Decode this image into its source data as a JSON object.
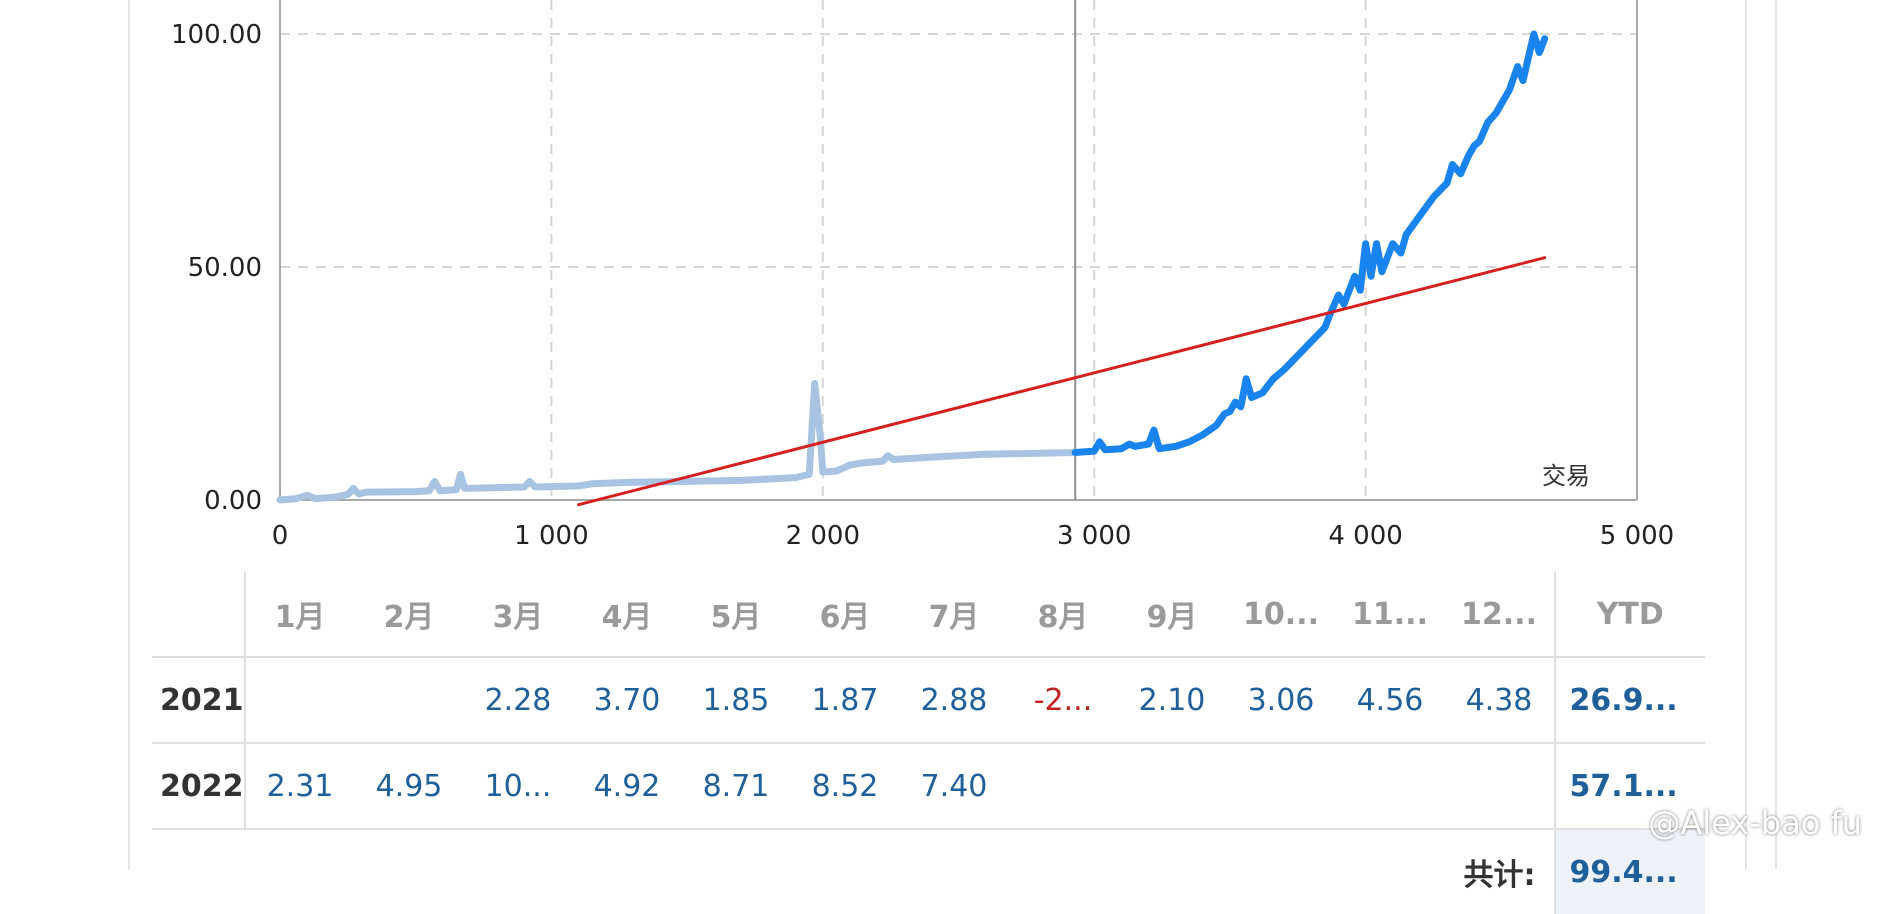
{
  "chart_data": {
    "type": "line",
    "xlim": [
      0,
      5000
    ],
    "ylim": [
      0,
      100
    ],
    "x_ticks": [
      "0",
      "1 000",
      "2 000",
      "3 000",
      "4 000",
      "5 000"
    ],
    "y_ticks": [
      "0.00",
      "50.00",
      "100.00"
    ],
    "grid": true,
    "series_label": "交易",
    "vertical_marker_x": 2930,
    "series": [
      {
        "style": "light-blue",
        "color": "#a9c3e3",
        "points": [
          [
            0,
            0
          ],
          [
            60,
            0.3
          ],
          [
            100,
            1
          ],
          [
            130,
            0.3
          ],
          [
            200,
            0.6
          ],
          [
            250,
            1.2
          ],
          [
            270,
            2.5
          ],
          [
            290,
            1.3
          ],
          [
            320,
            1.7
          ],
          [
            500,
            1.8
          ],
          [
            550,
            2
          ],
          [
            570,
            4
          ],
          [
            590,
            2
          ],
          [
            650,
            2.2
          ],
          [
            665,
            5.5
          ],
          [
            680,
            2.5
          ],
          [
            900,
            2.8
          ],
          [
            920,
            4
          ],
          [
            940,
            2.8
          ],
          [
            1100,
            3
          ],
          [
            1150,
            3.5
          ],
          [
            1300,
            3.8
          ],
          [
            1500,
            4
          ],
          [
            1700,
            4.2
          ],
          [
            1900,
            4.8
          ],
          [
            1950,
            5.5
          ],
          [
            1970,
            25
          ],
          [
            1990,
            14
          ],
          [
            2000,
            6
          ],
          [
            2050,
            6.2
          ],
          [
            2100,
            7.5
          ],
          [
            2150,
            8
          ],
          [
            2220,
            8.3
          ],
          [
            2240,
            9.5
          ],
          [
            2260,
            8.7
          ],
          [
            2400,
            9.2
          ],
          [
            2600,
            9.8
          ],
          [
            2930,
            10.2
          ]
        ]
      },
      {
        "style": "blue",
        "color": "#1a84ee",
        "points": [
          [
            2930,
            10.2
          ],
          [
            3000,
            10.5
          ],
          [
            3020,
            12.5
          ],
          [
            3040,
            10.8
          ],
          [
            3100,
            11
          ],
          [
            3130,
            12
          ],
          [
            3150,
            11.5
          ],
          [
            3200,
            12
          ],
          [
            3220,
            15
          ],
          [
            3240,
            11
          ],
          [
            3300,
            11.5
          ],
          [
            3350,
            12.5
          ],
          [
            3400,
            14
          ],
          [
            3450,
            16
          ],
          [
            3480,
            18.5
          ],
          [
            3500,
            19
          ],
          [
            3520,
            21
          ],
          [
            3540,
            20
          ],
          [
            3560,
            26
          ],
          [
            3580,
            22
          ],
          [
            3620,
            23
          ],
          [
            3660,
            26
          ],
          [
            3700,
            28
          ],
          [
            3750,
            31
          ],
          [
            3800,
            34
          ],
          [
            3850,
            37
          ],
          [
            3870,
            40
          ],
          [
            3900,
            44
          ],
          [
            3920,
            42
          ],
          [
            3960,
            48
          ],
          [
            3980,
            45
          ],
          [
            4000,
            55
          ],
          [
            4020,
            48
          ],
          [
            4040,
            55
          ],
          [
            4060,
            49
          ],
          [
            4100,
            55
          ],
          [
            4130,
            53
          ],
          [
            4150,
            57
          ],
          [
            4200,
            61
          ],
          [
            4250,
            65
          ],
          [
            4300,
            68
          ],
          [
            4320,
            72
          ],
          [
            4350,
            70
          ],
          [
            4380,
            74
          ],
          [
            4400,
            76
          ],
          [
            4420,
            77
          ],
          [
            4450,
            81
          ],
          [
            4480,
            83
          ],
          [
            4500,
            85
          ],
          [
            4530,
            88
          ],
          [
            4560,
            93
          ],
          [
            4580,
            90
          ],
          [
            4600,
            95
          ],
          [
            4620,
            100
          ],
          [
            4640,
            96
          ],
          [
            4660,
            99
          ]
        ]
      },
      {
        "style": "trend",
        "color": "#d62020",
        "points": [
          [
            1100,
            -1
          ],
          [
            4660,
            52
          ]
        ]
      }
    ]
  },
  "table": {
    "months": [
      "1月",
      "2月",
      "3月",
      "4月",
      "5月",
      "6月",
      "7月",
      "8月",
      "9月",
      "10...",
      "11...",
      "12..."
    ],
    "ytd_header": "YTD",
    "rows": [
      {
        "year": "2021",
        "values": [
          "",
          "",
          "2.28",
          "3.70",
          "1.85",
          "1.87",
          "2.88",
          "-2...",
          "2.10",
          "3.06",
          "4.56",
          "4.38"
        ],
        "ytd": "26.9..."
      },
      {
        "year": "2022",
        "values": [
          "2.31",
          "4.95",
          "10...",
          "4.92",
          "8.71",
          "8.52",
          "7.40",
          "",
          "",
          "",
          "",
          ""
        ],
        "ytd": "57.1..."
      }
    ],
    "total_label": "共计:",
    "total_value": "99.4..."
  },
  "watermark": "@Alex-bao fu"
}
